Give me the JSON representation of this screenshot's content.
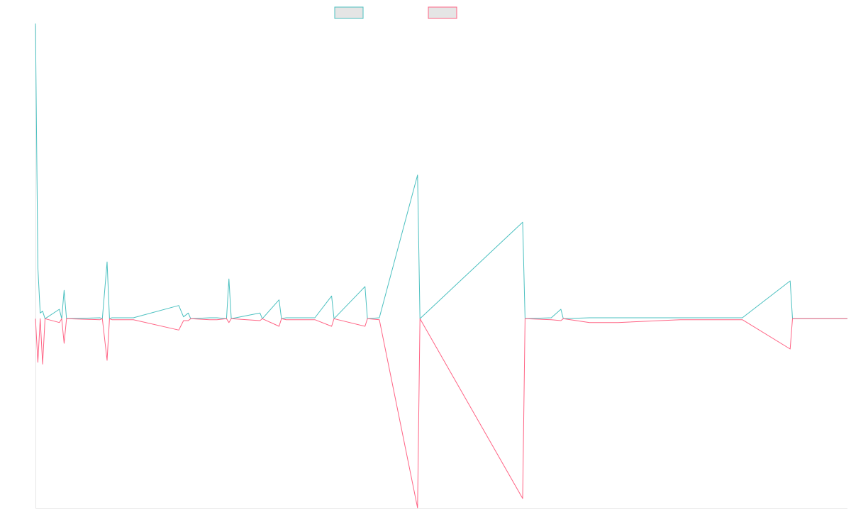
{
  "chart_data": {
    "type": "line",
    "title": "",
    "xlabel": "",
    "ylabel": "",
    "legend": {
      "placement": "top-center"
    },
    "grid": false,
    "ylim": [
      -100,
      155
    ],
    "x_count": 152,
    "series": [
      {
        "name": "",
        "color": "#4bc0c0",
        "points": [
          [
            0,
            156
          ],
          [
            0.5,
            27
          ],
          [
            1,
            3
          ],
          [
            1.5,
            4
          ],
          [
            2,
            0
          ],
          [
            5,
            5
          ],
          [
            5.5,
            0
          ],
          [
            6,
            15
          ],
          [
            6.5,
            0
          ],
          [
            13.5,
            0.5
          ],
          [
            14,
            0
          ],
          [
            15,
            30
          ],
          [
            15.5,
            0
          ],
          [
            16,
            0.5
          ],
          [
            18.5,
            0.5
          ],
          [
            20.5,
            0.5
          ],
          [
            30,
            7
          ],
          [
            31,
            1
          ],
          [
            32,
            3
          ],
          [
            32.5,
            0
          ],
          [
            36.5,
            0.5
          ],
          [
            38,
            0.5
          ],
          [
            40,
            0
          ],
          [
            40.5,
            21
          ],
          [
            41,
            0
          ],
          [
            47,
            3
          ],
          [
            47.5,
            0
          ],
          [
            51,
            10
          ],
          [
            51.5,
            0
          ],
          [
            52.5,
            0.5
          ],
          [
            58.5,
            0.5
          ],
          [
            62,
            12
          ],
          [
            62.5,
            0
          ],
          [
            69,
            17
          ],
          [
            69.5,
            0
          ],
          [
            72,
            0.5
          ],
          [
            80,
            76
          ],
          [
            80.5,
            0
          ],
          [
            102,
            51
          ],
          [
            102.5,
            0
          ],
          [
            108,
            0.5
          ],
          [
            110,
            5
          ],
          [
            110.5,
            0
          ],
          [
            116,
            0.5
          ],
          [
            122,
            0.5
          ],
          [
            135,
            0.5
          ],
          [
            148,
            0.5
          ],
          [
            158,
            20
          ],
          [
            158.5,
            0
          ],
          [
            170,
            0
          ]
        ]
      },
      {
        "name": "",
        "color": "#ff6384",
        "points": [
          [
            0,
            0
          ],
          [
            0.5,
            -23
          ],
          [
            1,
            0
          ],
          [
            1.5,
            -24
          ],
          [
            2,
            0
          ],
          [
            5,
            -2
          ],
          [
            5.5,
            0
          ],
          [
            6,
            -13
          ],
          [
            6.5,
            0
          ],
          [
            13.5,
            -0.5
          ],
          [
            14,
            0
          ],
          [
            15,
            -22
          ],
          [
            15.5,
            0
          ],
          [
            16,
            -0.5
          ],
          [
            18.5,
            -0.5
          ],
          [
            20.5,
            -0.5
          ],
          [
            30,
            -6
          ],
          [
            31,
            -1
          ],
          [
            32,
            -1
          ],
          [
            32.5,
            0
          ],
          [
            36.5,
            -0.5
          ],
          [
            38,
            -0.5
          ],
          [
            40,
            0
          ],
          [
            40.5,
            -2
          ],
          [
            41,
            0
          ],
          [
            47,
            -1
          ],
          [
            47.5,
            0
          ],
          [
            51,
            -4
          ],
          [
            51.5,
            0
          ],
          [
            52.5,
            -0.5
          ],
          [
            58.5,
            -0.5
          ],
          [
            62,
            -4
          ],
          [
            62.5,
            0
          ],
          [
            69,
            -4
          ],
          [
            69.5,
            0
          ],
          [
            72,
            -0.5
          ],
          [
            80,
            -100
          ],
          [
            80.5,
            0
          ],
          [
            102,
            -95
          ],
          [
            102.5,
            0
          ],
          [
            108,
            -0.5
          ],
          [
            110,
            -1
          ],
          [
            110.5,
            0
          ],
          [
            116,
            -2
          ],
          [
            122,
            -2
          ],
          [
            135,
            -0.5
          ],
          [
            148,
            -0.5
          ],
          [
            158,
            -16
          ],
          [
            158.5,
            0
          ],
          [
            170,
            0
          ]
        ]
      }
    ]
  }
}
